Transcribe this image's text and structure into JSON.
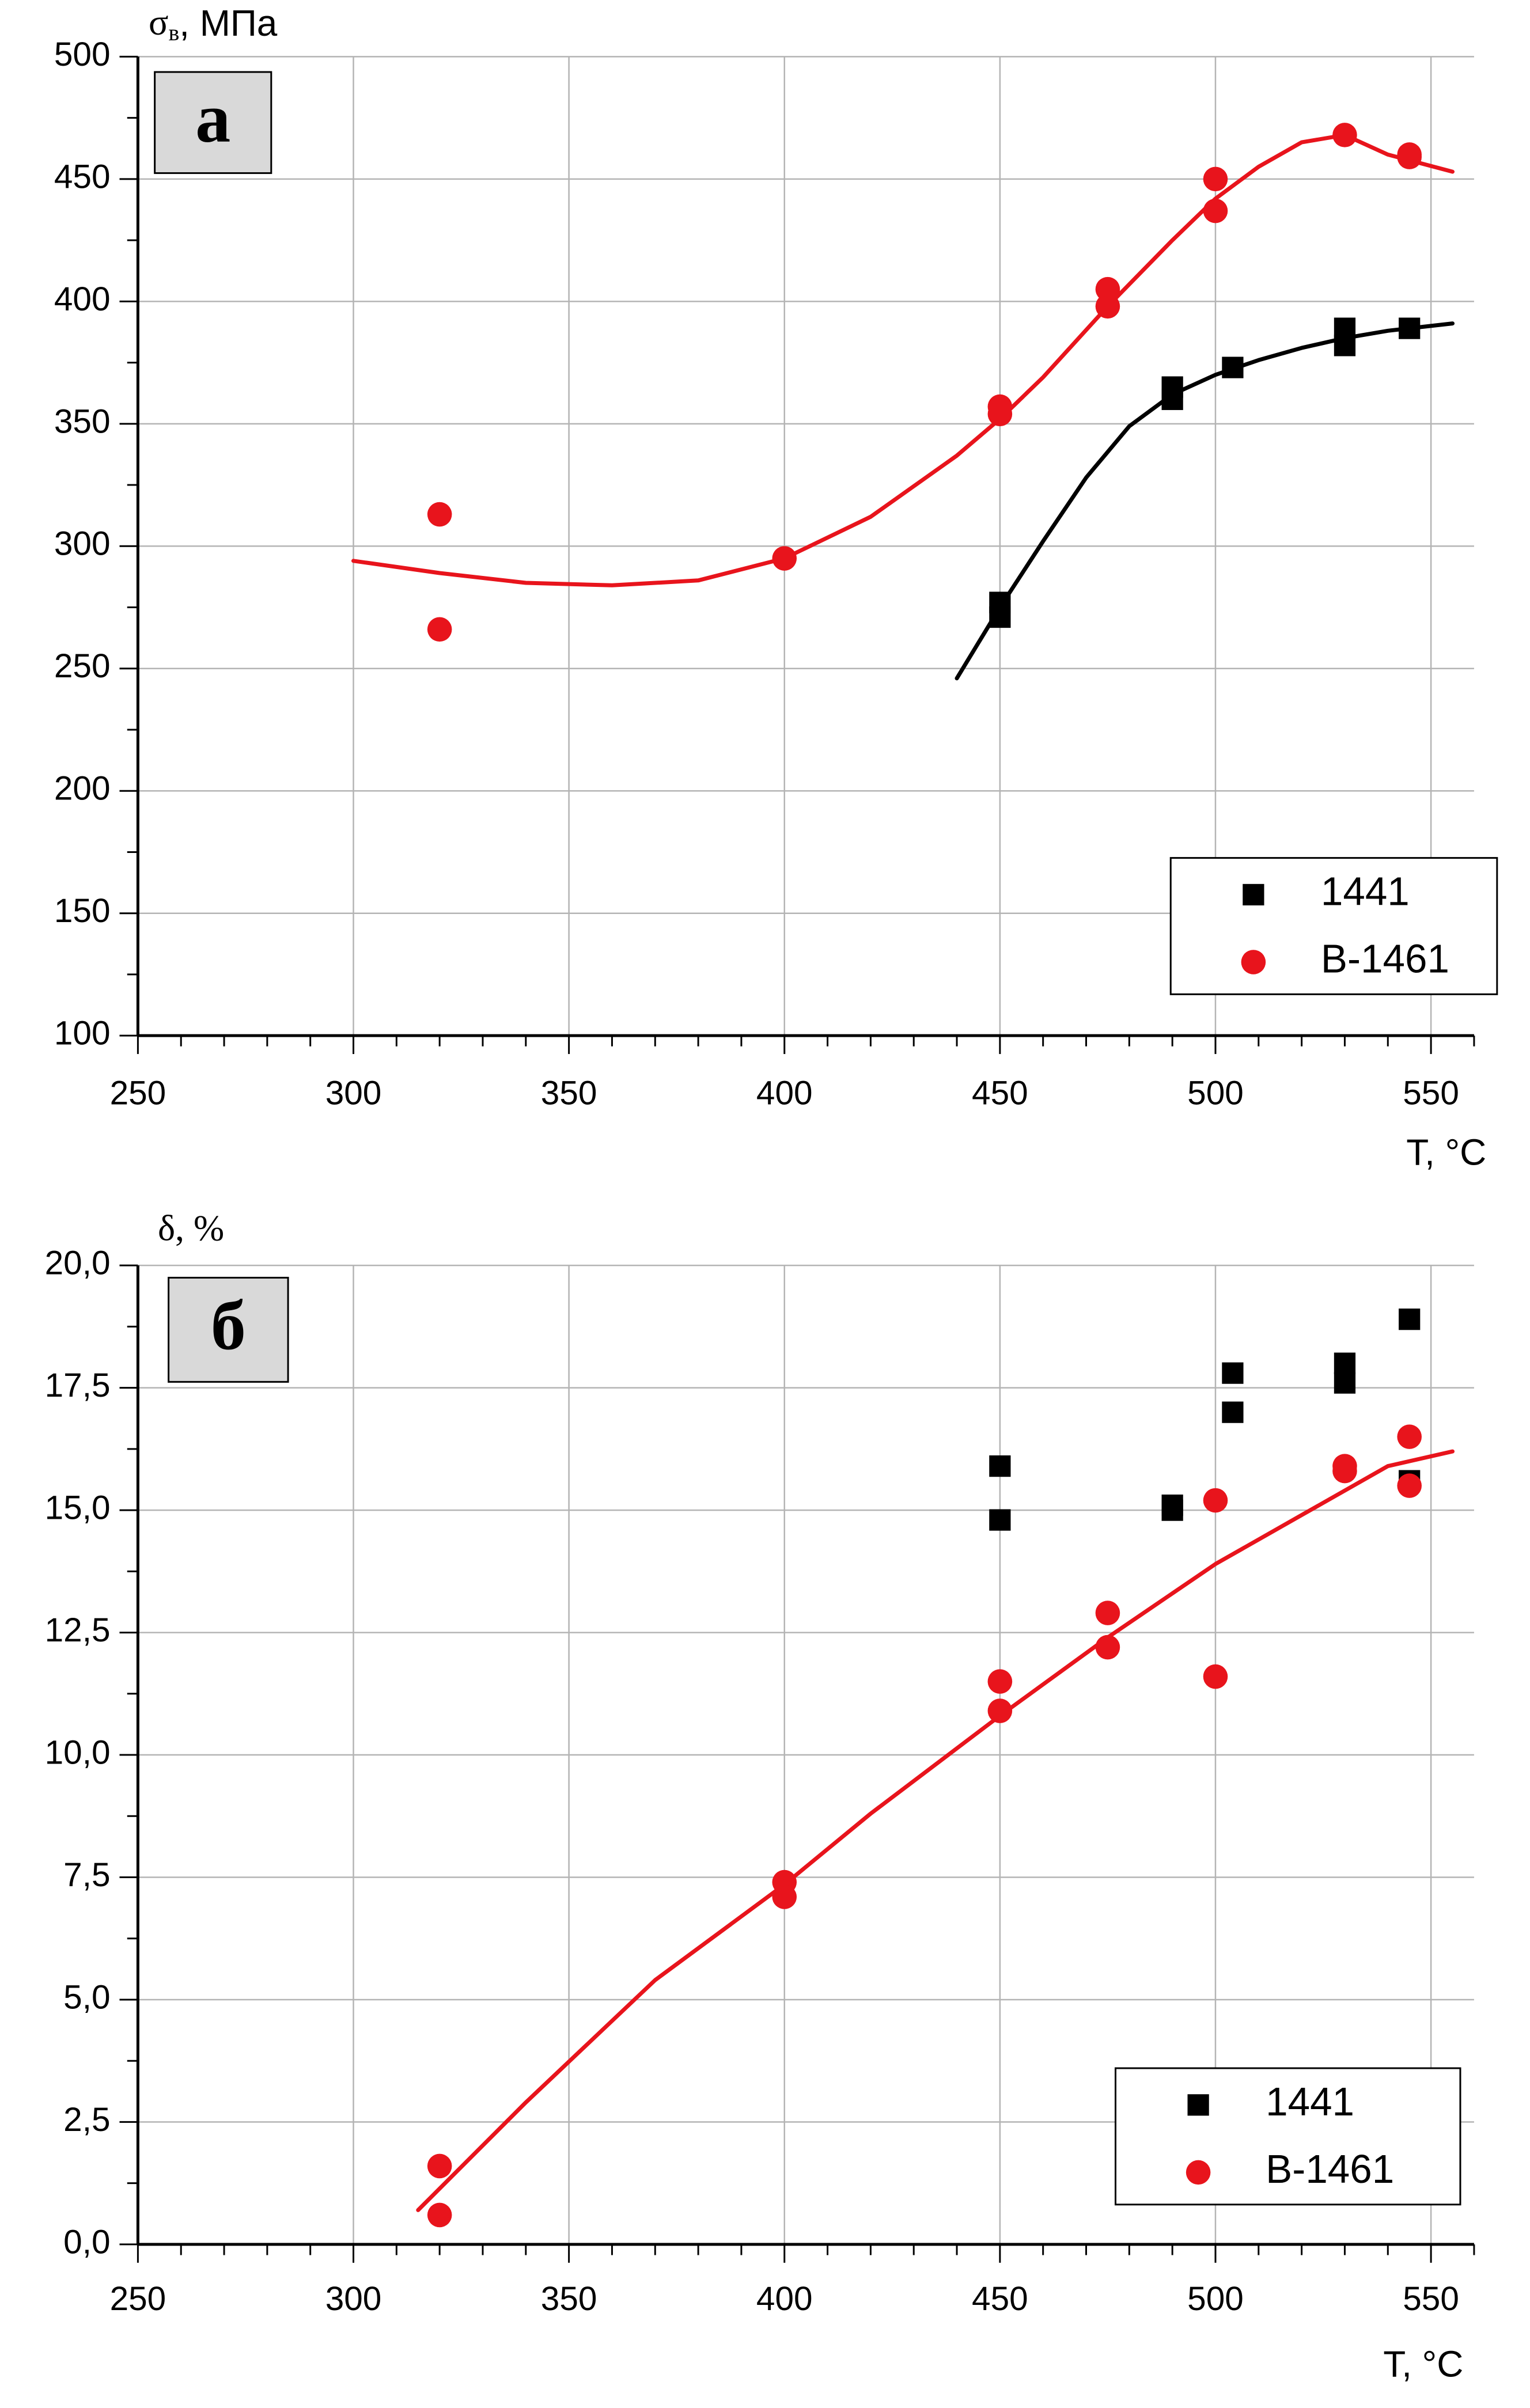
{
  "chart_data": [
    {
      "type": "scatter",
      "panel_label": "а",
      "ylabel_symbol": "σ",
      "ylabel_subscript": "в",
      "ylabel_unit": ", МПа",
      "xlabel": "T, °C",
      "xlim": [
        250,
        560
      ],
      "ylim": [
        100,
        500
      ],
      "xticks": [
        "250",
        "300",
        "350",
        "400",
        "450",
        "500",
        "550"
      ],
      "yticks": [
        "100",
        "150",
        "200",
        "250",
        "300",
        "350",
        "400",
        "450",
        "500"
      ],
      "grid": true,
      "legend_position": "bottom-right",
      "series": [
        {
          "name": "1441",
          "color": "#000000",
          "marker": "square",
          "points": [
            [
              450,
              271
            ],
            [
              450,
              277
            ],
            [
              490,
              360
            ],
            [
              490,
              365
            ],
            [
              504,
              373
            ],
            [
              530,
              382
            ],
            [
              530,
              389
            ],
            [
              545,
              389
            ]
          ],
          "fit": [
            [
              440,
              246
            ],
            [
              450,
              275
            ],
            [
              460,
              302
            ],
            [
              470,
              328
            ],
            [
              480,
              349
            ],
            [
              490,
              362
            ],
            [
              500,
              370
            ],
            [
              510,
              376
            ],
            [
              520,
              381
            ],
            [
              530,
              385
            ],
            [
              540,
              388
            ],
            [
              555,
              391
            ]
          ]
        },
        {
          "name": "В-1461",
          "color": "#e8141c",
          "marker": "circle",
          "points": [
            [
              320,
              313
            ],
            [
              320,
              266
            ],
            [
              400,
              295
            ],
            [
              450,
              354
            ],
            [
              450,
              357
            ],
            [
              475,
              398
            ],
            [
              475,
              405
            ],
            [
              500,
              437
            ],
            [
              500,
              450
            ],
            [
              530,
              468
            ],
            [
              545,
              459
            ],
            [
              545,
              460
            ]
          ],
          "fit": [
            [
              300,
              294
            ],
            [
              320,
              289
            ],
            [
              340,
              285
            ],
            [
              360,
              284
            ],
            [
              380,
              286
            ],
            [
              400,
              295
            ],
            [
              420,
              312
            ],
            [
              440,
              337
            ],
            [
              450,
              352
            ],
            [
              460,
              369
            ],
            [
              475,
              398
            ],
            [
              490,
              425
            ],
            [
              500,
              442
            ],
            [
              510,
              455
            ],
            [
              520,
              465
            ],
            [
              530,
              468
            ],
            [
              540,
              460
            ],
            [
              555,
              453
            ]
          ]
        }
      ]
    },
    {
      "type": "scatter",
      "panel_label": "б",
      "ylabel": "δ, %",
      "xlabel": "T, °C",
      "xlim": [
        250,
        560
      ],
      "ylim": [
        0,
        20
      ],
      "xticks": [
        "250",
        "300",
        "350",
        "400",
        "450",
        "500",
        "550"
      ],
      "yticks": [
        "0,0",
        "2,5",
        "5,0",
        "7,5",
        "10,0",
        "12,5",
        "15,0",
        "17,5",
        "20,0"
      ],
      "grid": true,
      "legend_position": "bottom-right",
      "series": [
        {
          "name": "1441",
          "color": "#000000",
          "marker": "square",
          "points": [
            [
              450,
              15.9
            ],
            [
              450,
              14.8
            ],
            [
              490,
              15.0
            ],
            [
              490,
              15.1
            ],
            [
              504,
              17.8
            ],
            [
              504,
              17.0
            ],
            [
              530,
              18.0
            ],
            [
              530,
              17.6
            ],
            [
              545,
              18.9
            ],
            [
              545,
              15.6
            ]
          ]
        },
        {
          "name": "В-1461",
          "color": "#e8141c",
          "marker": "circle",
          "points": [
            [
              320,
              1.6
            ],
            [
              320,
              0.6
            ],
            [
              400,
              7.4
            ],
            [
              400,
              7.1
            ],
            [
              450,
              11.5
            ],
            [
              450,
              10.9
            ],
            [
              475,
              12.9
            ],
            [
              475,
              12.2
            ],
            [
              500,
              15.2
            ],
            [
              500,
              11.6
            ],
            [
              530,
              15.8
            ],
            [
              530,
              15.9
            ],
            [
              545,
              16.5
            ],
            [
              545,
              15.5
            ]
          ],
          "fit": [
            [
              315,
              0.7
            ],
            [
              340,
              2.9
            ],
            [
              370,
              5.4
            ],
            [
              400,
              7.35
            ],
            [
              420,
              8.8
            ],
            [
              450,
              10.8
            ],
            [
              475,
              12.4
            ],
            [
              500,
              13.9
            ],
            [
              520,
              14.9
            ],
            [
              540,
              15.9
            ],
            [
              555,
              16.2
            ]
          ]
        }
      ]
    }
  ]
}
